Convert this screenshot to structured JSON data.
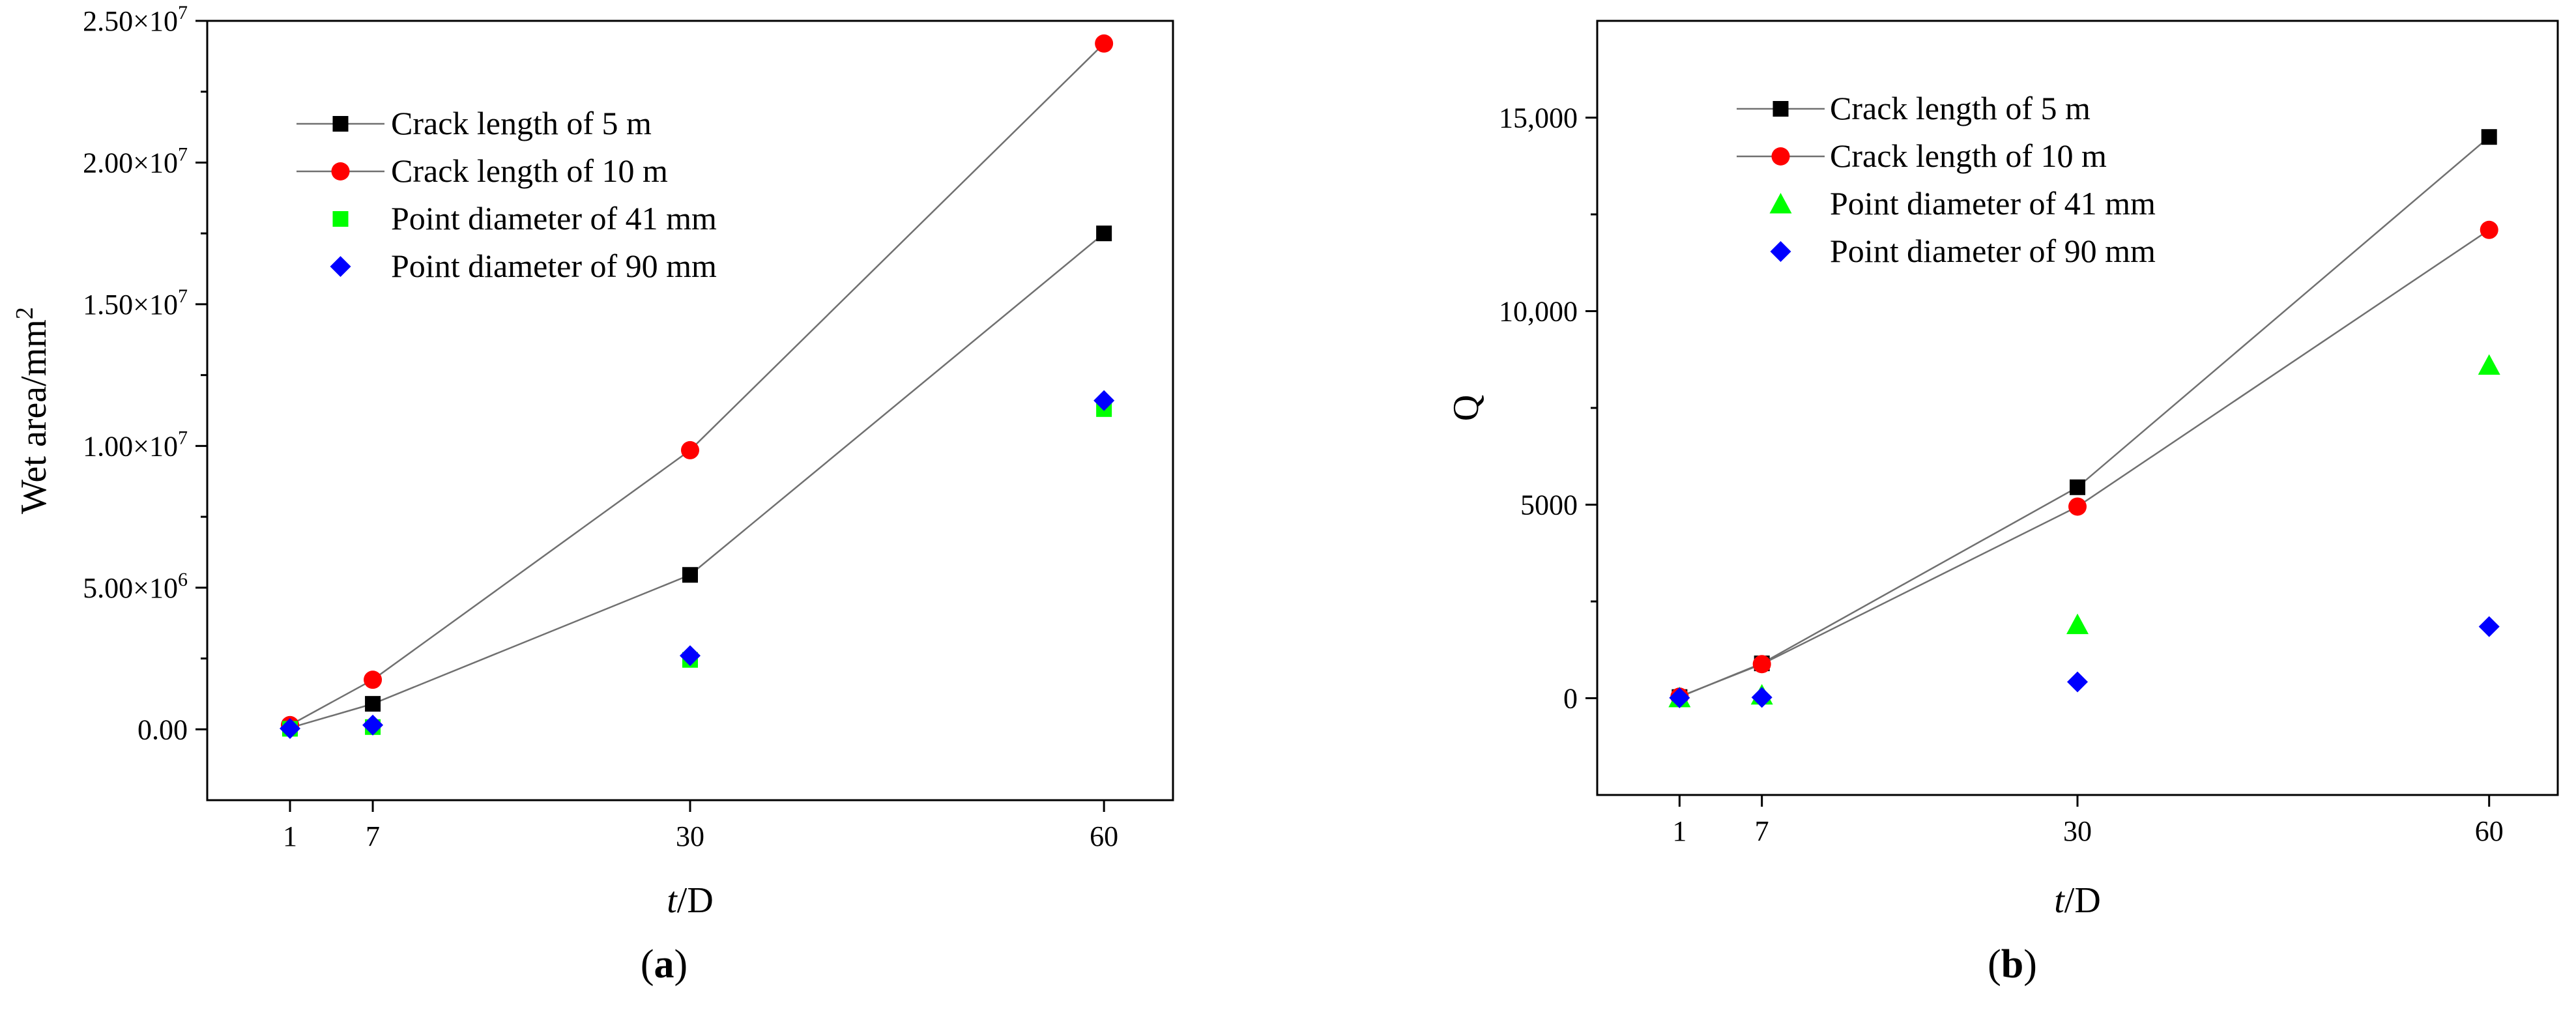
{
  "chart_data": [
    {
      "type": "scatter",
      "panel_label": {
        "prefix": "(",
        "letter": "a",
        "suffix": ")"
      },
      "xlabel": {
        "italic": "t",
        "rest": "/D"
      },
      "ylabel": {
        "base": "Wet area/mm",
        "sup": "2"
      },
      "x_ticks": [
        1,
        7,
        30,
        60
      ],
      "xlim": [
        -5,
        65
      ],
      "ylim": [
        -2500000,
        25000000
      ],
      "y_ticks": [
        {
          "value": 0,
          "label": "0.00",
          "exp": ""
        },
        {
          "value": 5000000,
          "label": "5.00×10",
          "exp": "6"
        },
        {
          "value": 10000000,
          "label": "1.00×10",
          "exp": "7"
        },
        {
          "value": 15000000,
          "label": "1.50×10",
          "exp": "7"
        },
        {
          "value": 20000000,
          "label": "2.00×10",
          "exp": "7"
        },
        {
          "value": 25000000,
          "label": "2.50×10",
          "exp": "7"
        }
      ],
      "legend_position": "top-left",
      "series": [
        {
          "name": "Crack length of 5 m",
          "marker": "square",
          "color": "#000000",
          "line": true,
          "x": [
            1,
            7,
            30,
            60
          ],
          "y": [
            50000,
            900000,
            5450000,
            17500000
          ]
        },
        {
          "name": "Crack length of 10 m",
          "marker": "circle",
          "color": "#ff0000",
          "line": true,
          "x": [
            1,
            7,
            30,
            60
          ],
          "y": [
            150000,
            1750000,
            9850000,
            24200000
          ]
        },
        {
          "name": "Point diameter of 41 mm",
          "marker": "square",
          "color": "#00ff00",
          "line": false,
          "x": [
            1,
            7,
            30,
            60
          ],
          "y": [
            20000,
            80000,
            2450000,
            11300000
          ]
        },
        {
          "name": "Point diameter of 90 mm",
          "marker": "diamond",
          "color": "#0000ff",
          "line": false,
          "x": [
            1,
            7,
            30,
            60
          ],
          "y": [
            30000,
            150000,
            2600000,
            11600000
          ]
        }
      ]
    },
    {
      "type": "scatter",
      "panel_label": {
        "prefix": "(",
        "letter": "b",
        "suffix": ")"
      },
      "xlabel": {
        "italic": "t",
        "rest": "/D"
      },
      "ylabel": {
        "base": "Q",
        "sup": ""
      },
      "x_ticks": [
        1,
        7,
        30,
        60
      ],
      "xlim": [
        -5,
        65
      ],
      "ylim": [
        -2500,
        17500
      ],
      "y_ticks": [
        {
          "value": 0,
          "label": "0",
          "exp": ""
        },
        {
          "value": 5000,
          "label": "5000",
          "exp": ""
        },
        {
          "value": 10000,
          "label": "10,000",
          "exp": ""
        },
        {
          "value": 15000,
          "label": "15,000",
          "exp": ""
        }
      ],
      "legend_position": "top-left",
      "series": [
        {
          "name": "Crack length of 5 m",
          "marker": "square",
          "color": "#000000",
          "line": true,
          "x": [
            1,
            7,
            30,
            60
          ],
          "y": [
            30,
            900,
            5450,
            14500
          ]
        },
        {
          "name": "Crack length of 10 m",
          "marker": "circle",
          "color": "#ff0000",
          "line": true,
          "x": [
            1,
            7,
            30,
            60
          ],
          "y": [
            40,
            880,
            4950,
            12100
          ]
        },
        {
          "name": "Point diameter of 41 mm",
          "marker": "triangle",
          "color": "#00ff00",
          "line": false,
          "x": [
            1,
            7,
            30,
            60
          ],
          "y": [
            10,
            80,
            1900,
            8600
          ]
        },
        {
          "name": "Point diameter of 90 mm",
          "marker": "diamond",
          "color": "#0000ff",
          "line": false,
          "x": [
            1,
            7,
            30,
            60
          ],
          "y": [
            10,
            20,
            420,
            1850
          ]
        }
      ]
    }
  ]
}
